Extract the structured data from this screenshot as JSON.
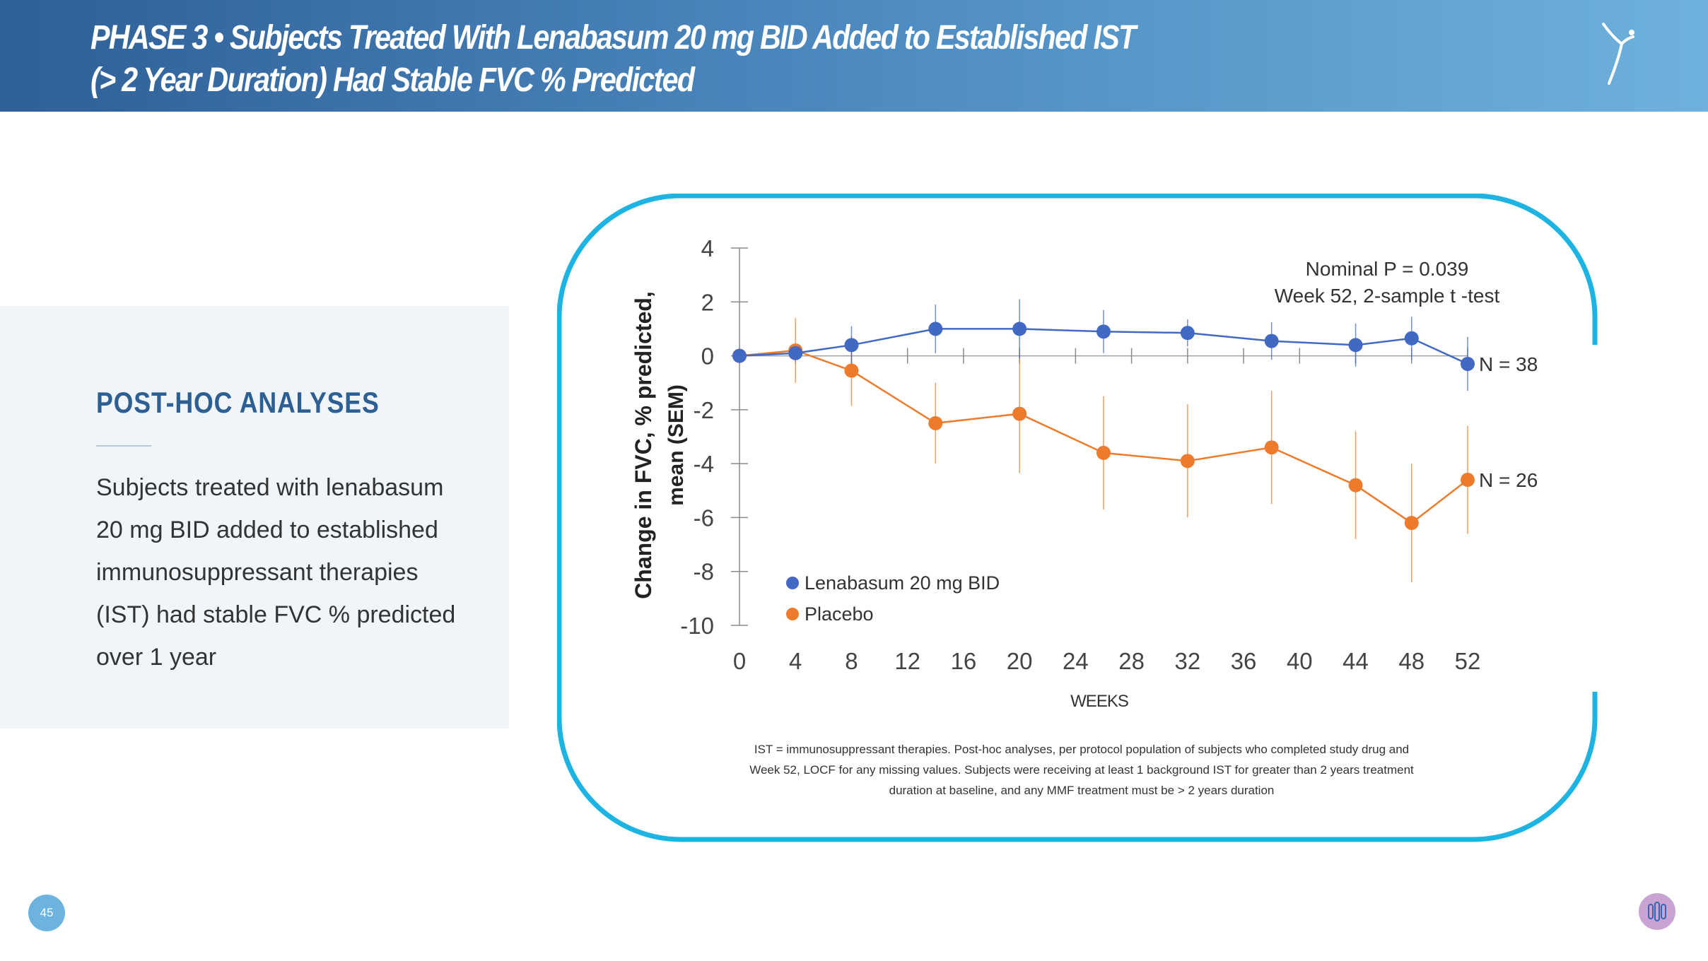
{
  "header": {
    "title_line1": "PHASE 3 • Subjects Treated With Lenabasum 20 mg BID Added to Established IST",
    "title_line2": "(> 2 Year Duration) Had Stable FVC % Predicted"
  },
  "sidebar": {
    "heading": "POST-HOC ANALYSES",
    "body_lines": [
      "Subjects treated with lenabasum",
      "20 mg BID added to established",
      "immunosuppressant therapies",
      "(IST) had stable FVC % predicted",
      "over 1 year"
    ]
  },
  "footnote_lines": [
    "IST = immunosuppressant therapies. Post-hoc analyses, per protocol population of subjects who completed study drug and",
    "Week 52, LOCF for any missing values. Subjects were receiving at least 1 background IST for greater than 2 years treatment",
    "duration at baseline, and any MMF treatment must be > 2 years duration"
  ],
  "page_number": "45",
  "colors": {
    "lenabasum": "#4169c3",
    "placebo": "#ee7b2c",
    "frame": "#1db4e3",
    "header_start": "#2f5f97",
    "header_end": "#6db1dc"
  },
  "chart_data": {
    "type": "line",
    "ylabel_line1": "Change in FVC, % predicted,",
    "ylabel_line2": "mean (SEM)",
    "xlabel": "WEEKS",
    "ylim": [
      -10,
      4
    ],
    "xlim": [
      0,
      52
    ],
    "yticks": [
      4,
      2,
      0,
      -2,
      -4,
      -6,
      -8,
      -10
    ],
    "xticks": [
      0,
      4,
      8,
      12,
      16,
      20,
      24,
      28,
      32,
      36,
      40,
      44,
      48,
      52
    ],
    "annotation_line1": "Nominal P = 0.039",
    "annotation_line2": "Week 52, 2-sample t -test",
    "legend_position": "bottom-left",
    "series": [
      {
        "name": "Lenabasum 20 mg BID",
        "end_label": "N = 38",
        "x": [
          0,
          4,
          8,
          14,
          20,
          26,
          32,
          38,
          44,
          48,
          52
        ],
        "values": [
          0,
          0.1,
          0.4,
          1.0,
          1.0,
          0.9,
          0.85,
          0.55,
          0.4,
          0.65,
          -0.3
        ],
        "sem": [
          0,
          0.2,
          0.7,
          0.9,
          1.1,
          0.8,
          0.5,
          0.7,
          0.8,
          0.8,
          1.0
        ]
      },
      {
        "name": "Placebo",
        "end_label": "N = 26",
        "x": [
          0,
          4,
          8,
          14,
          20,
          26,
          32,
          38,
          44,
          48,
          52
        ],
        "values": [
          0,
          0.2,
          -0.55,
          -2.5,
          -2.15,
          -3.6,
          -3.9,
          -3.4,
          -4.8,
          -6.2,
          -4.6
        ],
        "sem": [
          0,
          1.2,
          1.3,
          1.5,
          2.2,
          2.1,
          2.1,
          2.1,
          2.0,
          2.2,
          2.0
        ]
      }
    ]
  }
}
